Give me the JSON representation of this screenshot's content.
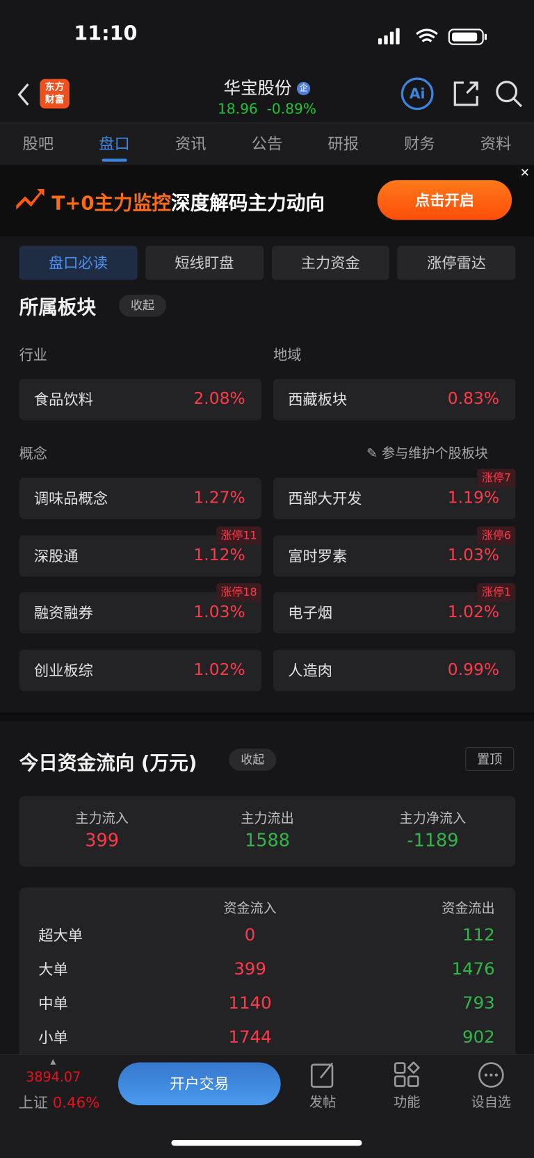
{
  "status_bar": {
    "time": "11:10"
  },
  "header": {
    "logo_text": "东方财富",
    "title": "华宝股份",
    "badge": "企",
    "price": "18.96",
    "change": "-0.89%"
  },
  "tabs": [
    {
      "label": "股吧"
    },
    {
      "label": "盘口",
      "active": true
    },
    {
      "label": "资讯"
    },
    {
      "label": "公告"
    },
    {
      "label": "研报"
    },
    {
      "label": "财务"
    },
    {
      "label": "资料"
    }
  ],
  "banner": {
    "highlight": "T+0主力监控",
    "text": "深度解码主力动向",
    "button": "点击开启"
  },
  "subtabs": [
    {
      "label": "盘口必读",
      "active": true
    },
    {
      "label": "短线盯盘"
    },
    {
      "label": "主力资金"
    },
    {
      "label": "涨停雷达"
    }
  ],
  "sector": {
    "title": "所属板块",
    "collapse": "收起",
    "industry_label": "行业",
    "region_label": "地域",
    "industry": {
      "name": "食品饮料",
      "change": "2.08%"
    },
    "region": {
      "name": "西藏板块",
      "change": "0.83%"
    },
    "concept_label": "概念",
    "maintain_link": "参与维护个股板块",
    "concepts": [
      {
        "name": "调味品概念",
        "change": "1.27%",
        "badge": ""
      },
      {
        "name": "西部大开发",
        "change": "1.19%",
        "badge": "涨停7"
      },
      {
        "name": "深股通",
        "change": "1.12%",
        "badge": "涨停11"
      },
      {
        "name": "富时罗素",
        "change": "1.03%",
        "badge": "涨停6"
      },
      {
        "name": "融资融券",
        "change": "1.03%",
        "badge": "涨停18"
      },
      {
        "name": "电子烟",
        "change": "1.02%",
        "badge": "涨停1"
      },
      {
        "name": "创业板综",
        "change": "1.02%",
        "badge": ""
      },
      {
        "name": "人造肉",
        "change": "0.99%",
        "badge": ""
      }
    ]
  },
  "fund_flow": {
    "title": "今日资金流向 (万元)",
    "collapse": "收起",
    "pin": "置顶",
    "summary": [
      {
        "label": "主力流入",
        "value": "399",
        "color": "red"
      },
      {
        "label": "主力流出",
        "value": "1588",
        "color": "green"
      },
      {
        "label": "主力净流入",
        "value": "-1189",
        "color": "green"
      }
    ],
    "headers": {
      "inflow": "资金流入",
      "outflow": "资金流出"
    },
    "rows": [
      {
        "type": "超大单",
        "inflow": "0",
        "outflow": "112"
      },
      {
        "type": "大单",
        "inflow": "399",
        "outflow": "1476"
      },
      {
        "type": "中单",
        "inflow": "1140",
        "outflow": "793"
      },
      {
        "type": "小单",
        "inflow": "1744",
        "outflow": "902"
      }
    ]
  },
  "bottom_bar": {
    "index_value": "3894.07",
    "index_name": "上证",
    "index_change": "0.46%",
    "trade_button": "开户交易",
    "post": "发帖",
    "functions": "功能",
    "watchlist": "设自选"
  },
  "colors": {
    "up": "#ff3a4a",
    "down": "#33b54a",
    "accent": "#3d86e0",
    "banner_button": "#ff5a10"
  }
}
